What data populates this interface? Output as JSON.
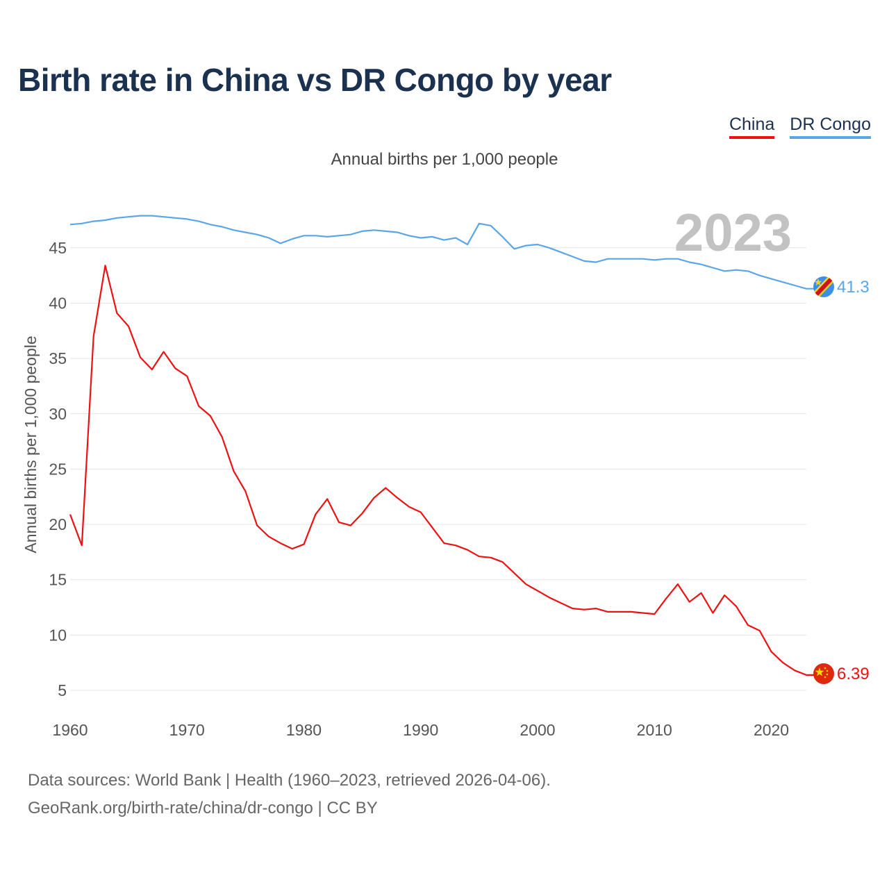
{
  "title": "Birth rate in China vs DR Congo by year",
  "subtitle": "Annual births per 1,000 people",
  "legend": [
    {
      "label": "China",
      "color": "#ee1111"
    },
    {
      "label": "DR Congo",
      "color": "#5aa5e8"
    }
  ],
  "footer": {
    "line1": "Data sources: World Bank | Health (1960–2023, retrieved 2026-04-06).",
    "line2": "GeoRank.org/birth-rate/china/dr-congo | CC BY"
  },
  "chart_data": {
    "type": "line",
    "title": "Birth rate in China vs DR Congo by year",
    "subtitle": "Annual births per 1,000 people",
    "xlabel": "",
    "ylabel": "Annual births per 1,000 people",
    "current_year_label": "2023",
    "xlim": [
      1960,
      2023
    ],
    "ylim": [
      2.5,
      49
    ],
    "x_ticks": [
      1960,
      1970,
      1980,
      1990,
      2000,
      2010,
      2020
    ],
    "y_ticks": [
      5,
      10,
      15,
      20,
      25,
      30,
      35,
      40,
      45
    ],
    "grid": true,
    "x": [
      1960,
      1961,
      1962,
      1963,
      1964,
      1965,
      1966,
      1967,
      1968,
      1969,
      1970,
      1971,
      1972,
      1973,
      1974,
      1975,
      1976,
      1977,
      1978,
      1979,
      1980,
      1981,
      1982,
      1983,
      1984,
      1985,
      1986,
      1987,
      1988,
      1989,
      1990,
      1991,
      1992,
      1993,
      1994,
      1995,
      1996,
      1997,
      1998,
      1999,
      2000,
      2001,
      2002,
      2003,
      2004,
      2005,
      2006,
      2007,
      2008,
      2009,
      2010,
      2011,
      2012,
      2013,
      2014,
      2015,
      2016,
      2017,
      2018,
      2019,
      2020,
      2021,
      2022,
      2023
    ],
    "series": [
      {
        "name": "China",
        "color": "#ee1111",
        "end_label": "6.39",
        "values": [
          20.9,
          18.1,
          37.0,
          43.4,
          39.1,
          37.9,
          35.1,
          34.0,
          35.6,
          34.1,
          33.4,
          30.7,
          29.8,
          27.9,
          24.8,
          23.0,
          19.9,
          18.9,
          18.3,
          17.8,
          18.2,
          20.9,
          22.3,
          20.2,
          19.9,
          21.0,
          22.4,
          23.3,
          22.4,
          21.6,
          21.1,
          19.7,
          18.3,
          18.1,
          17.7,
          17.1,
          17.0,
          16.6,
          15.6,
          14.6,
          14.0,
          13.4,
          12.9,
          12.4,
          12.3,
          12.4,
          12.1,
          12.1,
          12.1,
          12.0,
          11.9,
          13.3,
          14.6,
          13.0,
          13.8,
          12.0,
          13.6,
          12.6,
          10.9,
          10.4,
          8.5,
          7.5,
          6.8,
          6.39
        ]
      },
      {
        "name": "DR Congo",
        "color": "#5aa5e8",
        "end_label": "41.3",
        "values": [
          47.1,
          47.2,
          47.4,
          47.5,
          47.7,
          47.8,
          47.9,
          47.9,
          47.8,
          47.7,
          47.6,
          47.4,
          47.1,
          46.9,
          46.6,
          46.4,
          46.2,
          45.9,
          45.4,
          45.8,
          46.1,
          46.1,
          46.0,
          46.1,
          46.2,
          46.5,
          46.6,
          46.5,
          46.4,
          46.1,
          45.9,
          46.0,
          45.7,
          45.9,
          45.3,
          47.2,
          47.0,
          46.0,
          44.9,
          45.2,
          45.3,
          45.0,
          44.6,
          44.2,
          43.8,
          43.7,
          44.0,
          44.0,
          44.0,
          44.0,
          43.9,
          44.0,
          44.0,
          43.7,
          43.5,
          43.2,
          42.9,
          43.0,
          42.9,
          42.5,
          42.2,
          41.9,
          41.6,
          41.3
        ]
      }
    ]
  }
}
